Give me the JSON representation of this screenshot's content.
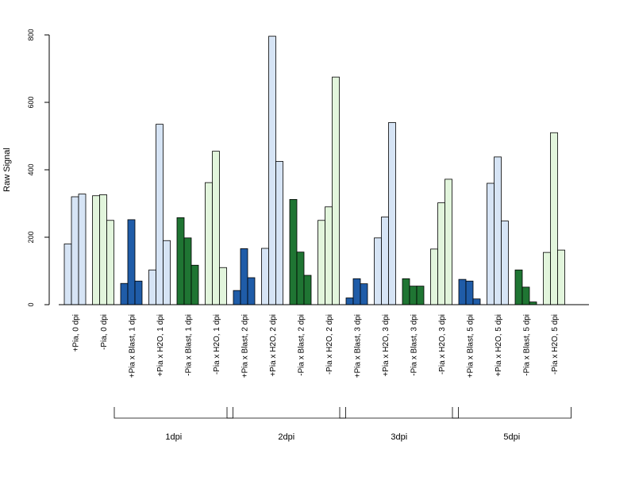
{
  "chart_data": {
    "type": "bar",
    "ylabel": "Raw Signal",
    "ylim": [
      0,
      800
    ],
    "yticks": [
      0,
      200,
      400,
      600,
      800
    ],
    "colors": {
      "pia_h2o": "#d6e4f5",
      "pia_blast": "#1f5ca8",
      "nopia_blast": "#1f7533",
      "nopia_h2o": "#e2f5dc",
      "stroke": "#000000"
    },
    "categories": [
      "+Pia, 0 dpi",
      "-Pia, 0 dpi",
      "+Pia x Blast, 1 dpi",
      "+Pia x H2O, 1 dpi",
      "-Pia x Blast, 1 dpi",
      "-Pia x H2O, 1 dpi",
      "+Pia x Blast, 2 dpi",
      "+Pia x H2O, 2 dpi",
      "-Pia x Blast, 2 dpi",
      "-Pia x H2O, 2 dpi",
      "+Pia x Blast, 3 dpi",
      "+Pia x H2O, 3 dpi",
      "-Pia x Blast, 3 dpi",
      "-Pia x H2O, 3 dpi",
      "+Pia x Blast, 5 dpi",
      "+Pia x H2O, 5 dpi",
      "-Pia x Blast, 5 dpi",
      "-Pia x H2O, 5 dpi"
    ],
    "group_colors": [
      "pia_h2o",
      "nopia_h2o",
      "pia_blast",
      "pia_h2o",
      "nopia_blast",
      "nopia_h2o",
      "pia_blast",
      "pia_h2o",
      "nopia_blast",
      "nopia_h2o",
      "pia_blast",
      "pia_h2o",
      "nopia_blast",
      "nopia_h2o",
      "pia_blast",
      "pia_h2o",
      "nopia_blast",
      "nopia_h2o"
    ],
    "values": [
      [
        180,
        320,
        328
      ],
      [
        323,
        326,
        250
      ],
      [
        63,
        252,
        70
      ],
      [
        103,
        535,
        190
      ],
      [
        258,
        198,
        117
      ],
      [
        362,
        455,
        110
      ],
      [
        42,
        166,
        80
      ],
      [
        167,
        796,
        425
      ],
      [
        312,
        156,
        87
      ],
      [
        250,
        290,
        675
      ],
      [
        20,
        77,
        62
      ],
      [
        198,
        260,
        540
      ],
      [
        77,
        55,
        55
      ],
      [
        165,
        302,
        372
      ],
      [
        75,
        70,
        17
      ],
      [
        360,
        438,
        248
      ],
      [
        103,
        52,
        8
      ],
      [
        155,
        510,
        162
      ]
    ],
    "timepoints": [
      {
        "label": "1dpi",
        "from": 2,
        "to": 5
      },
      {
        "label": "2dpi",
        "from": 6,
        "to": 9
      },
      {
        "label": "3dpi",
        "from": 10,
        "to": 13
      },
      {
        "label": "5dpi",
        "from": 14,
        "to": 17
      }
    ]
  }
}
